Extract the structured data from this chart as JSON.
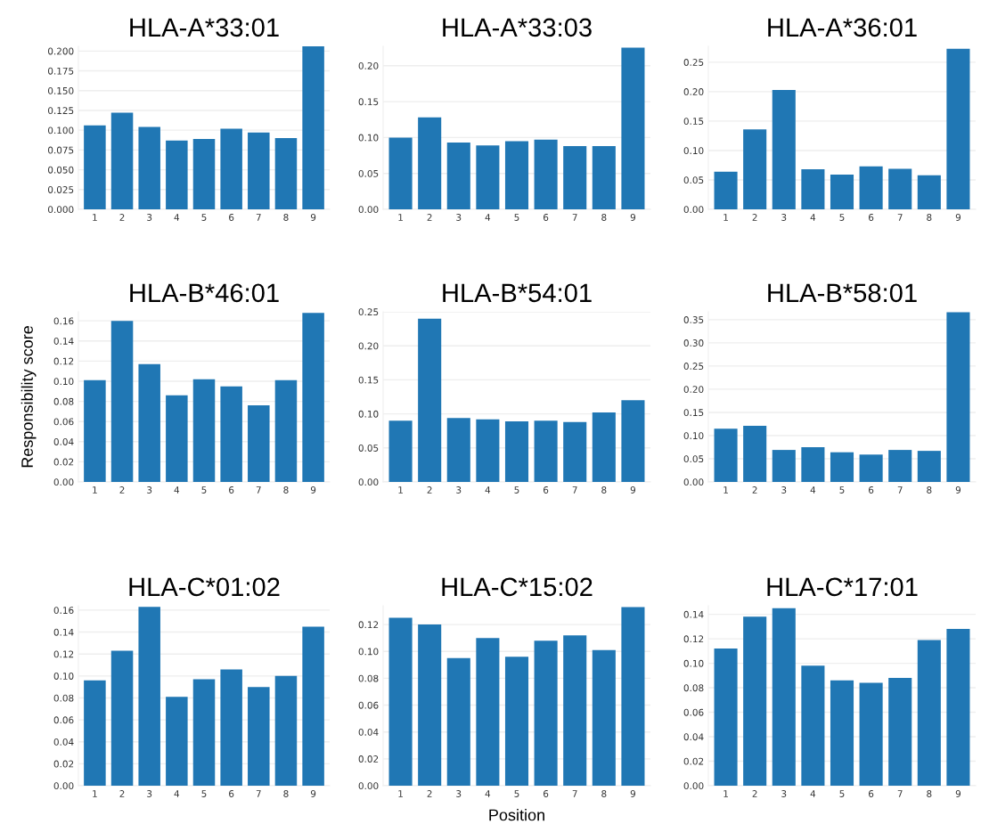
{
  "chart_data": [
    {
      "type": "bar",
      "title": "HLA-A*33:01",
      "categories": [
        "1",
        "2",
        "3",
        "4",
        "5",
        "6",
        "7",
        "8",
        "9"
      ],
      "values": [
        0.106,
        0.122,
        0.104,
        0.087,
        0.089,
        0.102,
        0.097,
        0.09,
        0.206
      ],
      "color": "#2077b4",
      "ylim": [
        0,
        0.206
      ],
      "yticks": [
        {
          "value": 0,
          "label": "0.000"
        },
        {
          "value": 0.025,
          "label": "0.025"
        },
        {
          "value": 0.05,
          "label": "0.050"
        },
        {
          "value": 0.075,
          "label": "0.075"
        },
        {
          "value": 0.1,
          "label": "0.100"
        },
        {
          "value": 0.125,
          "label": "0.125"
        },
        {
          "value": 0.15,
          "label": "0.150"
        },
        {
          "value": 0.175,
          "label": "0.175"
        },
        {
          "value": 0.2,
          "label": "0.200"
        }
      ],
      "grid": "y"
    },
    {
      "type": "bar",
      "title": "HLA-A*33:03",
      "categories": [
        "1",
        "2",
        "3",
        "4",
        "5",
        "6",
        "7",
        "8",
        "9"
      ],
      "values": [
        0.1,
        0.128,
        0.093,
        0.089,
        0.095,
        0.097,
        0.088,
        0.088,
        0.225
      ],
      "color": "#2077b4",
      "ylim": [
        0,
        0.227
      ],
      "yticks": [
        {
          "value": 0,
          "label": "0.00"
        },
        {
          "value": 0.05,
          "label": "0.05"
        },
        {
          "value": 0.1,
          "label": "0.10"
        },
        {
          "value": 0.15,
          "label": "0.15"
        },
        {
          "value": 0.2,
          "label": "0.20"
        }
      ],
      "grid": "y"
    },
    {
      "type": "bar",
      "title": "HLA-A*36:01",
      "categories": [
        "1",
        "2",
        "3",
        "4",
        "5",
        "6",
        "7",
        "8",
        "9"
      ],
      "values": [
        0.064,
        0.136,
        0.203,
        0.068,
        0.059,
        0.073,
        0.069,
        0.058,
        0.273
      ],
      "color": "#2077b4",
      "ylim": [
        0,
        0.277
      ],
      "yticks": [
        {
          "value": 0,
          "label": "0.00"
        },
        {
          "value": 0.05,
          "label": "0.05"
        },
        {
          "value": 0.1,
          "label": "0.10"
        },
        {
          "value": 0.15,
          "label": "0.15"
        },
        {
          "value": 0.2,
          "label": "0.20"
        },
        {
          "value": 0.25,
          "label": "0.25"
        }
      ],
      "grid": "y"
    },
    {
      "type": "bar",
      "title": "HLA-B*46:01",
      "ylabel": "Responsibility score",
      "categories": [
        "1",
        "2",
        "3",
        "4",
        "5",
        "6",
        "7",
        "8",
        "9"
      ],
      "values": [
        0.101,
        0.16,
        0.117,
        0.086,
        0.102,
        0.095,
        0.076,
        0.101,
        0.168
      ],
      "color": "#2077b4",
      "ylim": [
        0,
        0.169
      ],
      "yticks": [
        {
          "value": 0,
          "label": "0.00"
        },
        {
          "value": 0.02,
          "label": "0.02"
        },
        {
          "value": 0.04,
          "label": "0.04"
        },
        {
          "value": 0.06,
          "label": "0.06"
        },
        {
          "value": 0.08,
          "label": "0.08"
        },
        {
          "value": 0.1,
          "label": "0.10"
        },
        {
          "value": 0.12,
          "label": "0.12"
        },
        {
          "value": 0.14,
          "label": "0.14"
        },
        {
          "value": 0.16,
          "label": "0.16"
        }
      ],
      "grid": "y"
    },
    {
      "type": "bar",
      "title": "HLA-B*54:01",
      "categories": [
        "1",
        "2",
        "3",
        "4",
        "5",
        "6",
        "7",
        "8",
        "9"
      ],
      "values": [
        0.09,
        0.24,
        0.094,
        0.092,
        0.089,
        0.09,
        0.088,
        0.102,
        0.12
      ],
      "color": "#2077b4",
      "ylim": [
        0,
        0.25
      ],
      "yticks": [
        {
          "value": 0,
          "label": "0.00"
        },
        {
          "value": 0.05,
          "label": "0.05"
        },
        {
          "value": 0.1,
          "label": "0.10"
        },
        {
          "value": 0.15,
          "label": "0.15"
        },
        {
          "value": 0.2,
          "label": "0.20"
        },
        {
          "value": 0.25,
          "label": "0.25"
        }
      ],
      "grid": "y"
    },
    {
      "type": "bar",
      "title": "HLA-B*58:01",
      "categories": [
        "1",
        "2",
        "3",
        "4",
        "5",
        "6",
        "7",
        "8",
        "9"
      ],
      "values": [
        0.115,
        0.121,
        0.069,
        0.075,
        0.064,
        0.059,
        0.069,
        0.067,
        0.366
      ],
      "color": "#2077b4",
      "ylim": [
        0,
        0.367
      ],
      "yticks": [
        {
          "value": 0,
          "label": "0.00"
        },
        {
          "value": 0.05,
          "label": "0.05"
        },
        {
          "value": 0.1,
          "label": "0.10"
        },
        {
          "value": 0.15,
          "label": "0.15"
        },
        {
          "value": 0.2,
          "label": "0.20"
        },
        {
          "value": 0.25,
          "label": "0.25"
        },
        {
          "value": 0.3,
          "label": "0.30"
        },
        {
          "value": 0.35,
          "label": "0.35"
        }
      ],
      "grid": "y"
    },
    {
      "type": "bar",
      "title": "HLA-C*01:02",
      "categories": [
        "1",
        "2",
        "3",
        "4",
        "5",
        "6",
        "7",
        "8",
        "9"
      ],
      "values": [
        0.096,
        0.123,
        0.163,
        0.081,
        0.097,
        0.106,
        0.09,
        0.1,
        0.145
      ],
      "color": "#2077b4",
      "ylim": [
        0,
        0.164
      ],
      "yticks": [
        {
          "value": 0,
          "label": "0.00"
        },
        {
          "value": 0.02,
          "label": "0.02"
        },
        {
          "value": 0.04,
          "label": "0.04"
        },
        {
          "value": 0.06,
          "label": "0.06"
        },
        {
          "value": 0.08,
          "label": "0.08"
        },
        {
          "value": 0.1,
          "label": "0.10"
        },
        {
          "value": 0.12,
          "label": "0.12"
        },
        {
          "value": 0.14,
          "label": "0.14"
        },
        {
          "value": 0.16,
          "label": "0.16"
        }
      ],
      "grid": "y"
    },
    {
      "type": "bar",
      "title": "HLA-C*15:02",
      "xlabel": "Position",
      "categories": [
        "1",
        "2",
        "3",
        "4",
        "5",
        "6",
        "7",
        "8",
        "9"
      ],
      "values": [
        0.125,
        0.12,
        0.095,
        0.11,
        0.096,
        0.108,
        0.112,
        0.101,
        0.133
      ],
      "color": "#2077b4",
      "ylim": [
        0,
        0.134
      ],
      "yticks": [
        {
          "value": 0,
          "label": "0.00"
        },
        {
          "value": 0.02,
          "label": "0.02"
        },
        {
          "value": 0.04,
          "label": "0.04"
        },
        {
          "value": 0.06,
          "label": "0.06"
        },
        {
          "value": 0.08,
          "label": "0.08"
        },
        {
          "value": 0.1,
          "label": "0.10"
        },
        {
          "value": 0.12,
          "label": "0.12"
        }
      ],
      "grid": "y"
    },
    {
      "type": "bar",
      "title": "HLA-C*17:01",
      "categories": [
        "1",
        "2",
        "3",
        "4",
        "5",
        "6",
        "7",
        "8",
        "9"
      ],
      "values": [
        0.112,
        0.138,
        0.145,
        0.098,
        0.086,
        0.084,
        0.088,
        0.119,
        0.128
      ],
      "color": "#2077b4",
      "ylim": [
        0,
        0.147
      ],
      "yticks": [
        {
          "value": 0,
          "label": "0.00"
        },
        {
          "value": 0.02,
          "label": "0.02"
        },
        {
          "value": 0.04,
          "label": "0.04"
        },
        {
          "value": 0.06,
          "label": "0.06"
        },
        {
          "value": 0.08,
          "label": "0.08"
        },
        {
          "value": 0.1,
          "label": "0.10"
        },
        {
          "value": 0.12,
          "label": "0.12"
        },
        {
          "value": 0.14,
          "label": "0.14"
        }
      ],
      "grid": "y"
    }
  ]
}
